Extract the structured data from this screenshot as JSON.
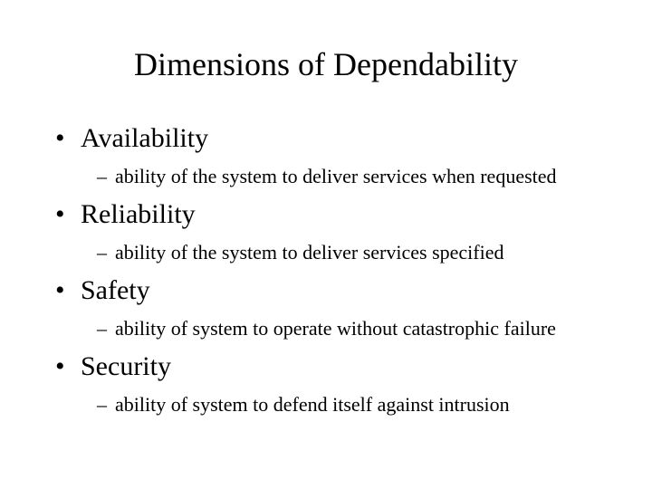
{
  "slide": {
    "title": "Dimensions of Dependability",
    "title_fontsize": 36,
    "background_color": "#ffffff",
    "text_color": "#000000",
    "font_family": "Times New Roman",
    "level1_fontsize": 30,
    "level2_fontsize": 22,
    "bullet_char": "•",
    "dash_char": "–",
    "items": [
      {
        "label": "Availability",
        "sub": "ability of the system to deliver services when requested"
      },
      {
        "label": "Reliability",
        "sub": "ability of the system to deliver services specified"
      },
      {
        "label": "Safety",
        "sub": "ability of system to operate without catastrophic failure"
      },
      {
        "label": "Security",
        "sub": "ability of system to defend itself against intrusion"
      }
    ]
  }
}
